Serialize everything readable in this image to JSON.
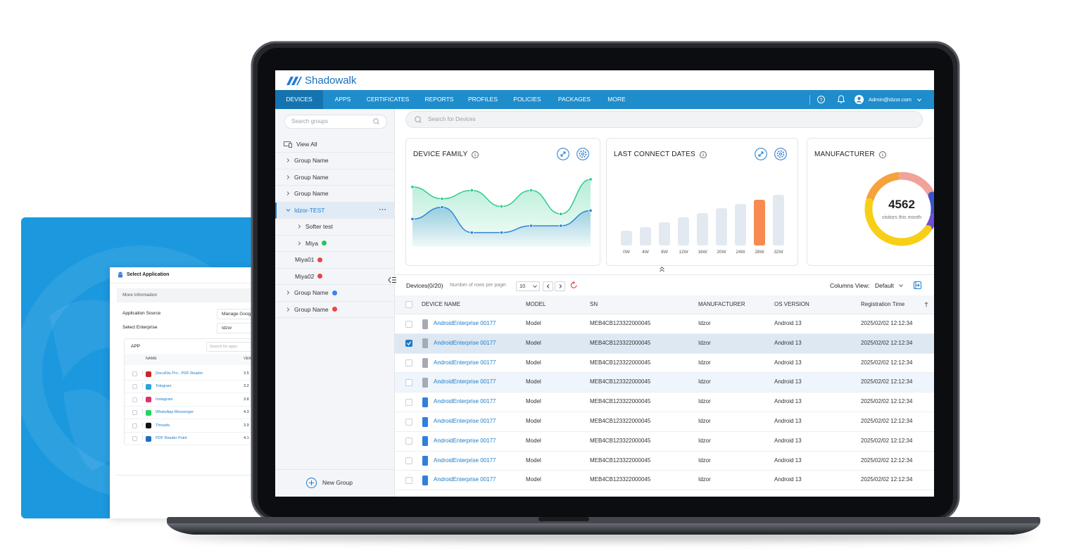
{
  "brand": "Shadowalk",
  "nav": {
    "items": [
      "DEVICES",
      "APPS",
      "CERTIFICATES",
      "REPORTS",
      "PROFILES",
      "POLICIES",
      "PACKAGES",
      "MORE"
    ],
    "active": 0,
    "user": "Admin@idzor.com"
  },
  "sidebar": {
    "search_placeholder": "Search groups",
    "view_all": "View All",
    "groups": [
      {
        "label": "Group Name",
        "expandable": true
      },
      {
        "label": "Group Name",
        "expandable": true
      },
      {
        "label": "Group Name",
        "expandable": true
      },
      {
        "label": "Idzor-TEST",
        "expandable": true,
        "expanded": true,
        "selected": true,
        "children": [
          {
            "label": "Softer test",
            "expandable": true
          },
          {
            "label": "Miya",
            "expandable": true,
            "dot": "#22c55e"
          }
        ]
      },
      {
        "label": "Miya01",
        "dot": "#ef4444"
      },
      {
        "label": "Miya02",
        "dot": "#ef4444"
      },
      {
        "label": "Group Name",
        "expandable": true,
        "dot": "#3b82f6"
      },
      {
        "label": "Group Name",
        "expandable": true,
        "dot": "#ef4444"
      }
    ],
    "new_group": "New Group"
  },
  "search_placeholder": "Search for Devices",
  "chart_data": [
    {
      "type": "line",
      "title": "DEVICE FAMILY",
      "categories": [
        null,
        null,
        null,
        null,
        null,
        null,
        null
      ],
      "ylim": [
        0,
        100
      ],
      "series": [
        {
          "color": "#2ecc8a",
          "values": [
            71,
            57,
            67,
            48,
            67,
            39,
            80
          ]
        },
        {
          "color": "#2f86d6",
          "values": [
            33,
            47,
            17,
            17,
            25,
            25,
            43
          ]
        }
      ]
    },
    {
      "type": "bar",
      "title": "LAST CONNECT DATES",
      "categories": [
        "0W",
        "4W",
        "8W",
        "12W",
        "16W",
        "20W",
        "24W",
        "28W",
        "32W"
      ],
      "values": [
        21,
        26,
        33,
        40,
        46,
        53,
        59,
        65,
        72
      ],
      "ylim": [
        0,
        80
      ],
      "color": "#e3e9f1",
      "highlight_color": "#f78a4e",
      "highlight_index": 7
    },
    {
      "type": "pie",
      "title": "MANUFACTURER",
      "categories": [
        null,
        null,
        null,
        null,
        null
      ],
      "values": [
        19,
        17,
        9,
        5,
        44
      ],
      "colors": [
        "#f5a13c",
        "#f0a39a",
        "#3b53c6",
        "#6f4fd0",
        "#f7cf17"
      ],
      "center_value": 4562,
      "center_label": "visitors this month"
    }
  ],
  "table": {
    "title": "Devices(0/20)",
    "rows_label": "Number of rows per page:",
    "rows_per_page": "10",
    "columns_view_label": "Columns View:",
    "columns_view": "Default",
    "headers": [
      "DEVICE NAME",
      "MODEL",
      "SN",
      "MANUFACTURER",
      "OS VERSION",
      "Registration Time"
    ],
    "rows": [
      {
        "cells": [
          "AndroidEnterprise 00177",
          "Model",
          "MEB4CB123322000045",
          "Idzor",
          "Android 13",
          "2025/02/02 12:12:34"
        ],
        "checked": false,
        "icon_color": "#a7abb1"
      },
      {
        "cells": [
          "AndroidEnterprise 00177",
          "Model",
          "MEB4CB123322000045",
          "Idzor",
          "Android 13",
          "2025/02/02 12:12:34"
        ],
        "checked": true,
        "icon_color": "#a7abb1"
      },
      {
        "cells": [
          "AndroidEnterprise 00177",
          "Model",
          "MEB4CB123322000045",
          "Idzor",
          "Android 13",
          "2025/02/02 12:12:34"
        ],
        "checked": false,
        "icon_color": "#a7abb1"
      },
      {
        "cells": [
          "AndroidEnterprise 00177",
          "Model",
          "MEB4CB123322000045",
          "Idzor",
          "Android 13",
          "2025/02/02 12:12:34"
        ],
        "checked": false,
        "hover": true,
        "icon_color": "#a7abb1"
      },
      {
        "cells": [
          "AndroidEnterprise 00177",
          "Model",
          "MEB4CB123322000045",
          "Idzor",
          "Android 13",
          "2025/02/02 12:12:34"
        ],
        "checked": false,
        "icon_color": "#2f7fe0"
      },
      {
        "cells": [
          "AndroidEnterprise 00177",
          "Model",
          "MEB4CB123322000045",
          "Idzor",
          "Android 13",
          "2025/02/02 12:12:34"
        ],
        "checked": false,
        "icon_color": "#2f7fe0"
      },
      {
        "cells": [
          "AndroidEnterprise 00177",
          "Model",
          "MEB4CB123322000045",
          "Idzor",
          "Android 13",
          "2025/02/02 12:12:34"
        ],
        "checked": false,
        "icon_color": "#2f7fe0"
      },
      {
        "cells": [
          "AndroidEnterprise 00177",
          "Model",
          "MEB4CB123322000045",
          "Idzor",
          "Android 13",
          "2025/02/02 12:12:34"
        ],
        "checked": false,
        "icon_color": "#2f7fe0"
      },
      {
        "cells": [
          "AndroidEnterprise 00177",
          "Model",
          "MEB4CB123322000045",
          "Idzor",
          "Android 13",
          "2025/02/02 12:12:34"
        ],
        "checked": false,
        "icon_color": "#2f7fe0"
      }
    ]
  },
  "dialog": {
    "title": "Select Application",
    "section": "More Information",
    "fields": [
      {
        "label": "Application Source",
        "value": "Manage Google"
      },
      {
        "label": "Select Enterprise",
        "value": "Idzor"
      }
    ],
    "app_label": "APP",
    "search_placeholder": "Search for apps",
    "headers": [
      "NAME",
      "VERS"
    ],
    "apps": [
      {
        "name": "DocuFile Pro - PDF Reader",
        "version": "3.5",
        "color": "#c62828"
      },
      {
        "name": "Telegram",
        "version": "3.2",
        "color": "#2aa3df"
      },
      {
        "name": "Instagram",
        "version": "3.8",
        "color": "#e1306c"
      },
      {
        "name": "WhatsApp Messenger",
        "version": "4.3",
        "color": "#25d366"
      },
      {
        "name": "Threads",
        "version": "3.9",
        "color": "#111111"
      },
      {
        "name": "PDF Reader Point",
        "version": "4.1",
        "color": "#1e6fc1"
      }
    ]
  }
}
